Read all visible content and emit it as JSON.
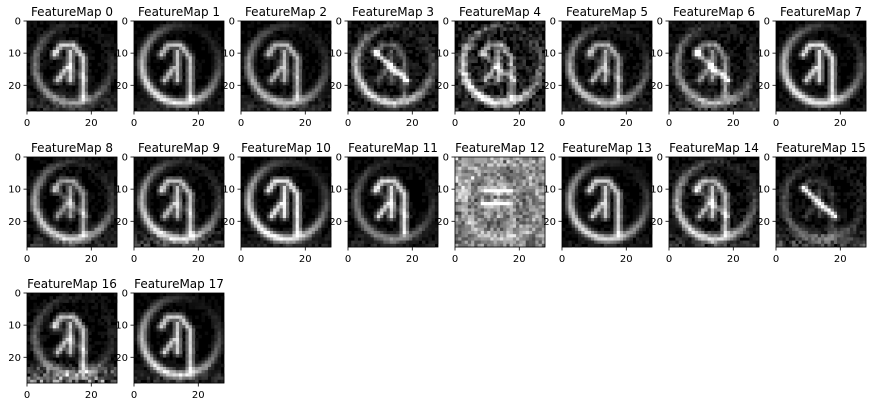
{
  "figure": {
    "background": "#ffffff",
    "colormap": "gray"
  },
  "chart_data": [
    {
      "type": "heatmap",
      "title": "FeatureMap 0",
      "grid": false,
      "image_shape": [
        28,
        28
      ],
      "xlim": [
        0,
        28
      ],
      "ylim": [
        28,
        0
      ],
      "xticks": [
        0,
        20
      ],
      "yticks": [
        0,
        10,
        20
      ],
      "xtick_labels": [
        "0",
        "20"
      ],
      "ytick_labels": [
        "0",
        "10",
        "20"
      ],
      "pattern": {
        "ring": 0.55,
        "arrow": 0.8,
        "diag": 0.15,
        "noise": 0.12,
        "bottom": 0.3,
        "seed": 3
      }
    },
    {
      "type": "heatmap",
      "title": "FeatureMap 1",
      "grid": false,
      "image_shape": [
        28,
        28
      ],
      "xlim": [
        0,
        28
      ],
      "ylim": [
        28,
        0
      ],
      "xticks": [
        0,
        20
      ],
      "yticks": [
        0,
        10,
        20
      ],
      "xtick_labels": [
        "0",
        "20"
      ],
      "ytick_labels": [
        "0",
        "10",
        "20"
      ],
      "pattern": {
        "ring": 0.9,
        "arrow": 0.75,
        "diag": 0.0,
        "noise": 0.08,
        "bottom": 0.2,
        "seed": 7
      }
    },
    {
      "type": "heatmap",
      "title": "FeatureMap 2",
      "grid": false,
      "image_shape": [
        28,
        28
      ],
      "xlim": [
        0,
        28
      ],
      "ylim": [
        28,
        0
      ],
      "xticks": [
        0,
        20
      ],
      "yticks": [
        0,
        10,
        20
      ],
      "xtick_labels": [
        "0",
        "20"
      ],
      "ytick_labels": [
        "0",
        "10",
        "20"
      ],
      "pattern": {
        "ring": 0.7,
        "arrow": 0.7,
        "diag": 0.1,
        "noise": 0.1,
        "bottom": 0.25,
        "seed": 11
      }
    },
    {
      "type": "heatmap",
      "title": "FeatureMap 3",
      "grid": false,
      "image_shape": [
        28,
        28
      ],
      "xlim": [
        0,
        28
      ],
      "ylim": [
        28,
        0
      ],
      "xticks": [
        0,
        20
      ],
      "yticks": [
        0,
        10,
        20
      ],
      "xtick_labels": [
        "0",
        "20"
      ],
      "ytick_labels": [
        "0",
        "10",
        "20"
      ],
      "pattern": {
        "ring": 0.85,
        "arrow": 0.35,
        "diag": 0.85,
        "noise": 0.22,
        "bottom": 0.1,
        "seed": 13
      }
    },
    {
      "type": "heatmap",
      "title": "FeatureMap 4",
      "grid": false,
      "image_shape": [
        28,
        28
      ],
      "xlim": [
        0,
        28
      ],
      "ylim": [
        28,
        0
      ],
      "xticks": [
        0,
        20
      ],
      "yticks": [
        0,
        10,
        20
      ],
      "xtick_labels": [
        "0",
        "20"
      ],
      "ytick_labels": [
        "0",
        "10",
        "20"
      ],
      "pattern": {
        "ring": 0.95,
        "arrow": 0.6,
        "diag": 0.4,
        "noise": 0.35,
        "bottom": 0.15,
        "seed": 17
      }
    },
    {
      "type": "heatmap",
      "title": "FeatureMap 5",
      "grid": false,
      "image_shape": [
        28,
        28
      ],
      "xlim": [
        0,
        28
      ],
      "ylim": [
        28,
        0
      ],
      "xticks": [
        0,
        20
      ],
      "yticks": [
        0,
        10,
        20
      ],
      "xtick_labels": [
        "0",
        "20"
      ],
      "ytick_labels": [
        "0",
        "10",
        "20"
      ],
      "pattern": {
        "ring": 0.75,
        "arrow": 0.65,
        "diag": 0.2,
        "noise": 0.15,
        "bottom": 0.2,
        "seed": 19
      }
    },
    {
      "type": "heatmap",
      "title": "FeatureMap 6",
      "grid": false,
      "image_shape": [
        28,
        28
      ],
      "xlim": [
        0,
        28
      ],
      "ylim": [
        28,
        0
      ],
      "xticks": [
        0,
        20
      ],
      "yticks": [
        0,
        10,
        20
      ],
      "xtick_labels": [
        "0",
        "20"
      ],
      "ytick_labels": [
        "0",
        "10",
        "20"
      ],
      "pattern": {
        "ring": 0.6,
        "arrow": 0.55,
        "diag": 0.7,
        "noise": 0.2,
        "bottom": 0.35,
        "seed": 23
      }
    },
    {
      "type": "heatmap",
      "title": "FeatureMap 7",
      "grid": false,
      "image_shape": [
        28,
        28
      ],
      "xlim": [
        0,
        28
      ],
      "ylim": [
        28,
        0
      ],
      "xticks": [
        0,
        20
      ],
      "yticks": [
        0,
        10,
        20
      ],
      "xtick_labels": [
        "0",
        "20"
      ],
      "ytick_labels": [
        "0",
        "10",
        "20"
      ],
      "pattern": {
        "ring": 0.9,
        "arrow": 0.85,
        "diag": 0.0,
        "noise": 0.1,
        "bottom": 0.15,
        "seed": 29
      }
    },
    {
      "type": "heatmap",
      "title": "FeatureMap 8",
      "grid": false,
      "image_shape": [
        28,
        28
      ],
      "xlim": [
        0,
        28
      ],
      "ylim": [
        28,
        0
      ],
      "xticks": [
        0,
        20
      ],
      "yticks": [
        0,
        10,
        20
      ],
      "xtick_labels": [
        "0",
        "20"
      ],
      "ytick_labels": [
        "0",
        "10",
        "20"
      ],
      "pattern": {
        "ring": 0.8,
        "arrow": 0.6,
        "diag": 0.3,
        "noise": 0.12,
        "bottom": 0.3,
        "seed": 31
      }
    },
    {
      "type": "heatmap",
      "title": "FeatureMap 9",
      "grid": false,
      "image_shape": [
        28,
        28
      ],
      "xlim": [
        0,
        28
      ],
      "ylim": [
        28,
        0
      ],
      "xticks": [
        0,
        20
      ],
      "yticks": [
        0,
        10,
        20
      ],
      "xtick_labels": [
        "0",
        "20"
      ],
      "ytick_labels": [
        "0",
        "10",
        "20"
      ],
      "pattern": {
        "ring": 0.85,
        "arrow": 0.75,
        "diag": 0.15,
        "noise": 0.1,
        "bottom": 0.45,
        "seed": 37
      }
    },
    {
      "type": "heatmap",
      "title": "FeatureMap 10",
      "grid": false,
      "image_shape": [
        28,
        28
      ],
      "xlim": [
        0,
        28
      ],
      "ylim": [
        28,
        0
      ],
      "xticks": [
        0,
        20
      ],
      "yticks": [
        0,
        10,
        20
      ],
      "xtick_labels": [
        "0",
        "20"
      ],
      "ytick_labels": [
        "0",
        "10",
        "20"
      ],
      "pattern": {
        "ring": 0.95,
        "arrow": 0.9,
        "diag": 0.05,
        "noise": 0.08,
        "bottom": 0.2,
        "seed": 41
      }
    },
    {
      "type": "heatmap",
      "title": "FeatureMap 11",
      "grid": false,
      "image_shape": [
        28,
        28
      ],
      "xlim": [
        0,
        28
      ],
      "ylim": [
        28,
        0
      ],
      "xticks": [
        0,
        20
      ],
      "yticks": [
        0,
        10,
        20
      ],
      "xtick_labels": [
        "0",
        "20"
      ],
      "ytick_labels": [
        "0",
        "10",
        "20"
      ],
      "pattern": {
        "ring": 0.5,
        "arrow": 0.85,
        "diag": 0.2,
        "noise": 0.1,
        "bottom": 0.2,
        "seed": 43
      }
    },
    {
      "type": "heatmap",
      "title": "FeatureMap 12",
      "grid": false,
      "image_shape": [
        28,
        28
      ],
      "xlim": [
        0,
        28
      ],
      "ylim": [
        28,
        0
      ],
      "xticks": [
        0,
        20
      ],
      "yticks": [
        0,
        10,
        20
      ],
      "xtick_labels": [
        "0",
        "20"
      ],
      "ytick_labels": [
        "0",
        "10",
        "20"
      ],
      "pattern": {
        "ring": 0.3,
        "arrow": 0.2,
        "diag": 0.0,
        "noise": 0.3,
        "bottom": 0.0,
        "bright_bg": 0.55,
        "bars": 0.95,
        "seed": 47
      }
    },
    {
      "type": "heatmap",
      "title": "FeatureMap 13",
      "grid": false,
      "image_shape": [
        28,
        28
      ],
      "xlim": [
        0,
        28
      ],
      "ylim": [
        28,
        0
      ],
      "xticks": [
        0,
        20
      ],
      "yticks": [
        0,
        10,
        20
      ],
      "xtick_labels": [
        "0",
        "20"
      ],
      "ytick_labels": [
        "0",
        "10",
        "20"
      ],
      "pattern": {
        "ring": 0.85,
        "arrow": 0.8,
        "diag": 0.05,
        "noise": 0.08,
        "bottom": 0.15,
        "seed": 53
      }
    },
    {
      "type": "heatmap",
      "title": "FeatureMap 14",
      "grid": false,
      "image_shape": [
        28,
        28
      ],
      "xlim": [
        0,
        28
      ],
      "ylim": [
        28,
        0
      ],
      "xticks": [
        0,
        20
      ],
      "yticks": [
        0,
        10,
        20
      ],
      "xtick_labels": [
        "0",
        "20"
      ],
      "ytick_labels": [
        "0",
        "10",
        "20"
      ],
      "pattern": {
        "ring": 0.8,
        "arrow": 0.7,
        "diag": 0.35,
        "noise": 0.18,
        "bottom": 0.3,
        "seed": 59
      }
    },
    {
      "type": "heatmap",
      "title": "FeatureMap 15",
      "grid": false,
      "image_shape": [
        28,
        28
      ],
      "xlim": [
        0,
        28
      ],
      "ylim": [
        28,
        0
      ],
      "xticks": [
        0,
        20
      ],
      "yticks": [
        0,
        10,
        20
      ],
      "xtick_labels": [
        "0",
        "20"
      ],
      "ytick_labels": [
        "0",
        "10",
        "20"
      ],
      "pattern": {
        "ring": 0.35,
        "arrow": 0.2,
        "diag": 0.9,
        "noise": 0.15,
        "bottom": 0.45,
        "seed": 61
      }
    },
    {
      "type": "heatmap",
      "title": "FeatureMap 16",
      "grid": false,
      "image_shape": [
        28,
        28
      ],
      "xlim": [
        0,
        28
      ],
      "ylim": [
        28,
        0
      ],
      "xticks": [
        0,
        20
      ],
      "yticks": [
        0,
        10,
        20
      ],
      "xtick_labels": [
        "0",
        "20"
      ],
      "ytick_labels": [
        "0",
        "10",
        "20"
      ],
      "pattern": {
        "ring": 0.45,
        "arrow": 0.75,
        "diag": 0.2,
        "noise": 0.12,
        "bottom": 0.9,
        "seed": 67
      }
    },
    {
      "type": "heatmap",
      "title": "FeatureMap 17",
      "grid": false,
      "image_shape": [
        28,
        28
      ],
      "xlim": [
        0,
        28
      ],
      "ylim": [
        28,
        0
      ],
      "xticks": [
        0,
        20
      ],
      "yticks": [
        0,
        10,
        20
      ],
      "xtick_labels": [
        "0",
        "20"
      ],
      "ytick_labels": [
        "0",
        "10",
        "20"
      ],
      "pattern": {
        "ring": 0.85,
        "arrow": 0.8,
        "diag": 0.05,
        "noise": 0.08,
        "bottom": 0.3,
        "seed": 71
      }
    }
  ]
}
